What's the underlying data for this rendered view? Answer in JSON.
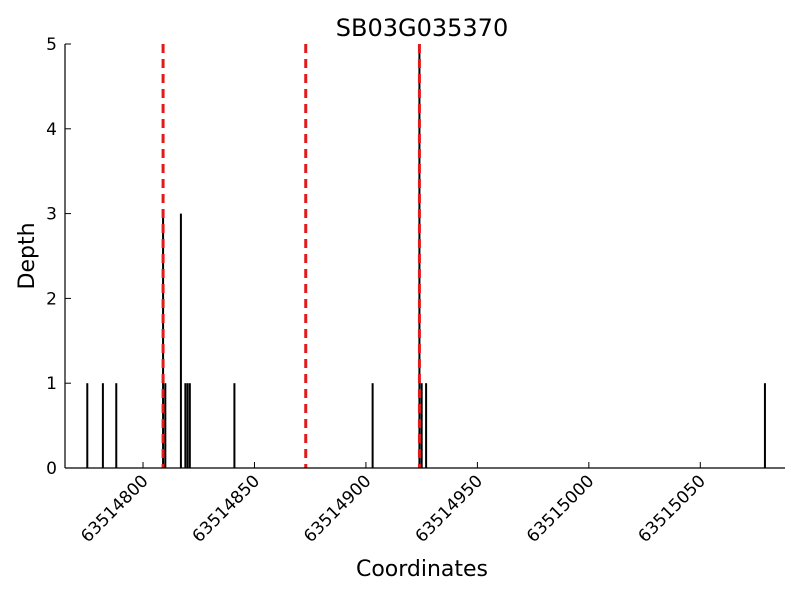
{
  "chart_data": {
    "type": "bar",
    "title": "SB03G035370",
    "xlabel": "Coordinates",
    "ylabel": "Depth",
    "xlim": [
      63514765,
      63515088
    ],
    "ylim": [
      0,
      5
    ],
    "x_ticks": [
      63514800,
      63514850,
      63514900,
      63514950,
      63515000,
      63515050
    ],
    "y_ticks": [
      0,
      1,
      2,
      3,
      4,
      5
    ],
    "bars": [
      {
        "x": 63514775,
        "depth": 1
      },
      {
        "x": 63514782,
        "depth": 1
      },
      {
        "x": 63514788,
        "depth": 1
      },
      {
        "x": 63514809,
        "depth": 3
      },
      {
        "x": 63514810,
        "depth": 1
      },
      {
        "x": 63514817,
        "depth": 3
      },
      {
        "x": 63514819,
        "depth": 1
      },
      {
        "x": 63514820,
        "depth": 1
      },
      {
        "x": 63514821,
        "depth": 1
      },
      {
        "x": 63514841,
        "depth": 1
      },
      {
        "x": 63514903,
        "depth": 1
      },
      {
        "x": 63514924,
        "depth": 5
      },
      {
        "x": 63514925,
        "depth": 1
      },
      {
        "x": 63514927,
        "depth": 1
      },
      {
        "x": 63515079,
        "depth": 1
      }
    ],
    "reference_lines": [
      {
        "x": 63514809,
        "color": "#e31a1c",
        "style": "dashed"
      },
      {
        "x": 63514873,
        "color": "#e31a1c",
        "style": "dashed"
      },
      {
        "x": 63514924,
        "color": "#e31a1c",
        "style": "dashed"
      }
    ],
    "bar_color": "#000000",
    "grid": false,
    "legend": "none"
  }
}
